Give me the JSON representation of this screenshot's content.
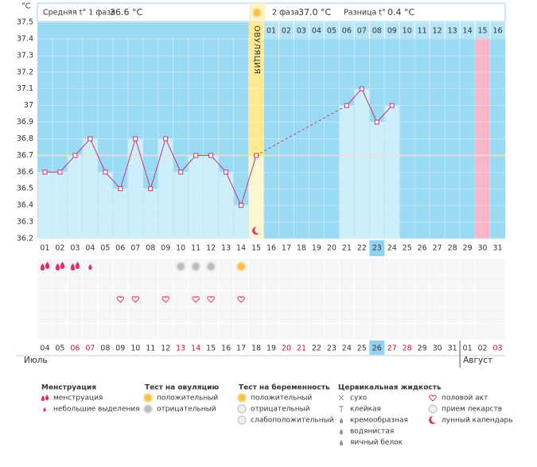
{
  "header": {
    "y_unit": "°C",
    "phase1_label": "Средняя t° 1 фаза",
    "phase1_value": "36.6 °C",
    "phase2_label": "2 фаза",
    "phase2_value": "37.0 °C",
    "diff_label": "Разница t°",
    "diff_value": "0.4 °C"
  },
  "chart_data": {
    "type": "line",
    "categories": [
      "01",
      "02",
      "03",
      "04",
      "05",
      "06",
      "07",
      "08",
      "09",
      "10",
      "11",
      "12",
      "13",
      "14",
      "15",
      "16",
      "17",
      "18",
      "19",
      "20",
      "21",
      "22",
      "23",
      "24",
      "25",
      "26",
      "27",
      "28",
      "29",
      "30",
      "31"
    ],
    "values": [
      36.6,
      36.6,
      36.7,
      36.8,
      36.6,
      36.5,
      36.8,
      36.5,
      36.8,
      36.6,
      36.7,
      36.7,
      36.6,
      36.4,
      36.7,
      null,
      null,
      null,
      null,
      null,
      37,
      37.1,
      36.9,
      37,
      null,
      null,
      null,
      null,
      null,
      null,
      null
    ],
    "color": "#cc3377",
    "bar_color": "#cdeefb",
    "background": "#9adaf3",
    "ylim": [
      36.2,
      37.5
    ],
    "yticks": [
      36.2,
      36.3,
      36.4,
      36.5,
      36.6,
      36.7,
      36.8,
      36.9,
      37,
      37.1,
      37.2,
      37.3,
      37.4,
      37.5
    ],
    "grid": true,
    "coverline": 36.7,
    "ovulation_day": 15,
    "ovulation_label": "ОВУЛЯЦИЯ",
    "expected_period_day": 30,
    "highlight_day": 23,
    "phase2_days": [
      "01",
      "02",
      "03",
      "04",
      "05",
      "06",
      "07",
      "08",
      "09",
      "10",
      "11",
      "12",
      "13",
      "14",
      "15",
      "16"
    ]
  },
  "calendar": {
    "dates": [
      "04",
      "05",
      "06",
      "07",
      "08",
      "09",
      "10",
      "11",
      "12",
      "13",
      "14",
      "15",
      "16",
      "17",
      "18",
      "19",
      "20",
      "21",
      "22",
      "23",
      "24",
      "25",
      "26",
      "27",
      "28",
      "29",
      "30",
      "31",
      "01",
      "02",
      "03"
    ],
    "weekend": [
      false,
      false,
      true,
      true,
      false,
      false,
      false,
      false,
      false,
      true,
      true,
      false,
      false,
      false,
      false,
      false,
      true,
      true,
      false,
      false,
      false,
      false,
      false,
      true,
      true,
      false,
      false,
      false,
      false,
      false,
      true
    ],
    "months": [
      {
        "label": "Июль",
        "start": 1
      },
      {
        "label": "Август",
        "start": 29
      }
    ],
    "menstruation": [
      1,
      2,
      3
    ],
    "spotting": [
      4
    ],
    "ovulation_test_negative": [
      10,
      11,
      12
    ],
    "ovulation_test_positive": [
      14
    ],
    "intercourse": [
      6,
      7,
      9,
      11,
      12,
      14
    ]
  },
  "legend": [
    {
      "title": "Менструация",
      "items": [
        "менструация",
        "небольшие выделения"
      ]
    },
    {
      "title": "Тест на овуляцию",
      "items": [
        "положительный",
        "отрицательный"
      ]
    },
    {
      "title": "Тест на беременность",
      "items": [
        "положительный",
        "отрицательный",
        "слабоположительный"
      ]
    },
    {
      "title": "Цервикальная жидкость",
      "items": [
        "сухо",
        "клейкая",
        "кремообразная",
        "водянистая",
        "яичный белок"
      ]
    },
    {
      "items": [
        "половой акт",
        "прием лекарств",
        "лунный календарь"
      ]
    }
  ]
}
